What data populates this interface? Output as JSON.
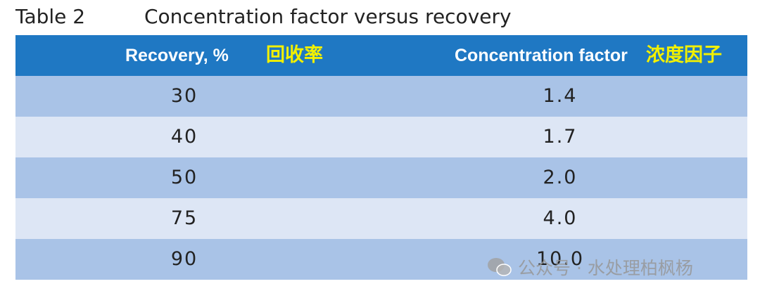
{
  "header": {
    "label": "Table 2",
    "title": "Concentration factor versus recovery"
  },
  "table": {
    "columns": [
      {
        "label": "Recovery, %",
        "annotation": "回收率"
      },
      {
        "label": "Concentration factor",
        "annotation": "浓度因子"
      }
    ],
    "rows": [
      [
        "30",
        "1.4"
      ],
      [
        "40",
        "1.7"
      ],
      [
        "50",
        "2.0"
      ],
      [
        "75",
        "4.0"
      ],
      [
        "90",
        "10.0"
      ]
    ]
  },
  "watermark": "公众号 · 水处理柏枫杨"
}
